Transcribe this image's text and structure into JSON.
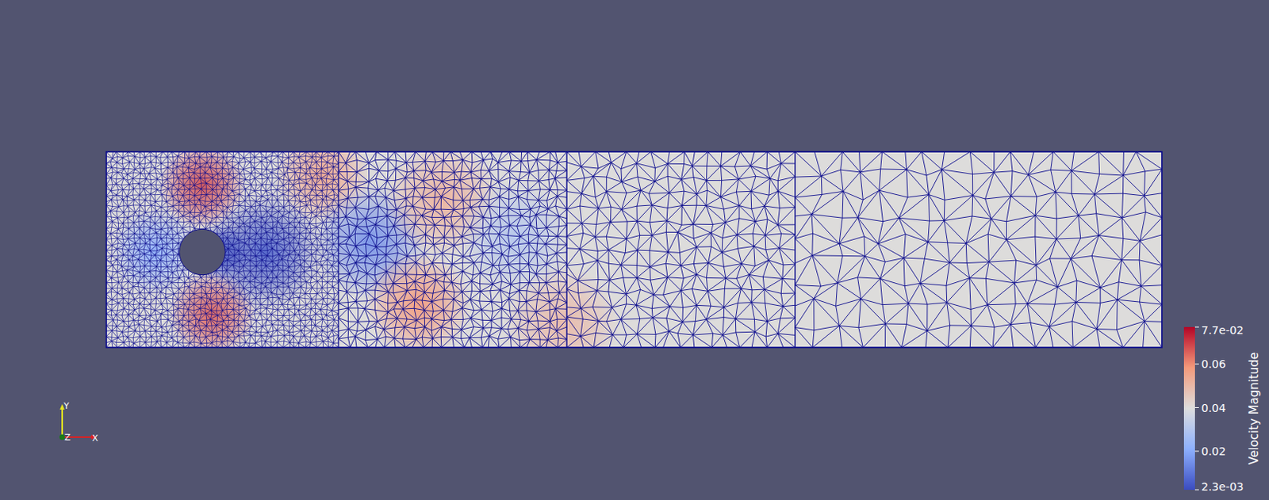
{
  "chart_data": {
    "type": "mesh_field",
    "domain": {
      "xlim": [
        0,
        2.2
      ],
      "ylim": [
        0,
        0.41
      ]
    },
    "cylinder": {
      "x": 0.2,
      "y": 0.2,
      "r": 0.048
    },
    "field": {
      "background_value": 0.04,
      "samples": [
        {
          "x": 0.1,
          "y": 0.2,
          "r": 0.09,
          "value": 0.02
        },
        {
          "x": 0.2,
          "y": 0.34,
          "r": 0.09,
          "value": 0.068
        },
        {
          "x": 0.22,
          "y": 0.07,
          "r": 0.09,
          "value": 0.066
        },
        {
          "x": 0.45,
          "y": 0.36,
          "r": 0.1,
          "value": 0.055
        },
        {
          "x": 0.33,
          "y": 0.2,
          "r": 0.12,
          "value": 0.006
        },
        {
          "x": 0.55,
          "y": 0.22,
          "r": 0.12,
          "value": 0.015
        },
        {
          "x": 0.7,
          "y": 0.31,
          "r": 0.12,
          "value": 0.052
        },
        {
          "x": 0.65,
          "y": 0.09,
          "r": 0.11,
          "value": 0.058
        },
        {
          "x": 0.95,
          "y": 0.05,
          "r": 0.12,
          "value": 0.05
        },
        {
          "x": 0.85,
          "y": 0.23,
          "r": 0.12,
          "value": 0.03
        },
        {
          "x": 0.24,
          "y": 0.2,
          "r": 0.06,
          "value": 0.003
        }
      ]
    },
    "colorbar": {
      "title": "Velocity Magnitude",
      "range": [
        0.0023,
        0.077
      ],
      "ticks": [
        {
          "value": 0.0023,
          "label": "2.3e-03"
        },
        0.02,
        0.04,
        0.06,
        {
          "value": 0.077,
          "label": "7.7e-02"
        }
      ]
    },
    "orientation_axes": {
      "labels": [
        "X",
        "Y",
        "Z"
      ]
    }
  }
}
